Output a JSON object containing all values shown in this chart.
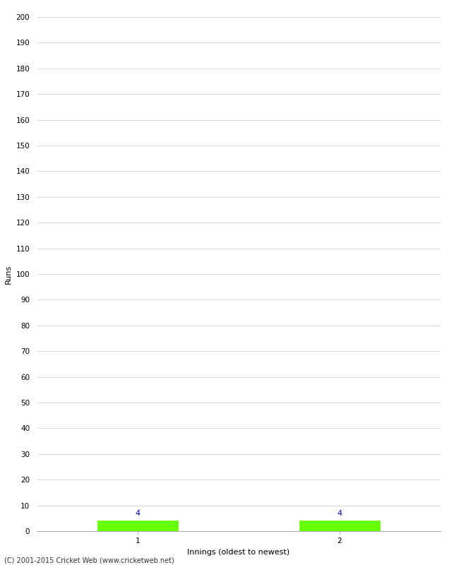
{
  "categories": [
    1,
    2
  ],
  "values": [
    4,
    4
  ],
  "bar_color": "#66ff00",
  "bar_edge_color": "#66ff00",
  "ylabel": "Runs",
  "xlabel": "Innings (oldest to newest)",
  "ylim": [
    0,
    200
  ],
  "ytick_step": 10,
  "bar_width": 0.4,
  "value_label_color": "#0000cc",
  "value_label_fontsize": 8,
  "axis_label_fontsize": 8,
  "tick_fontsize": 7.5,
  "footer": "(C) 2001-2015 Cricket Web (www.cricketweb.net)",
  "background_color": "#ffffff",
  "grid_color": "#cccccc",
  "xlim": [
    0.5,
    2.5
  ]
}
